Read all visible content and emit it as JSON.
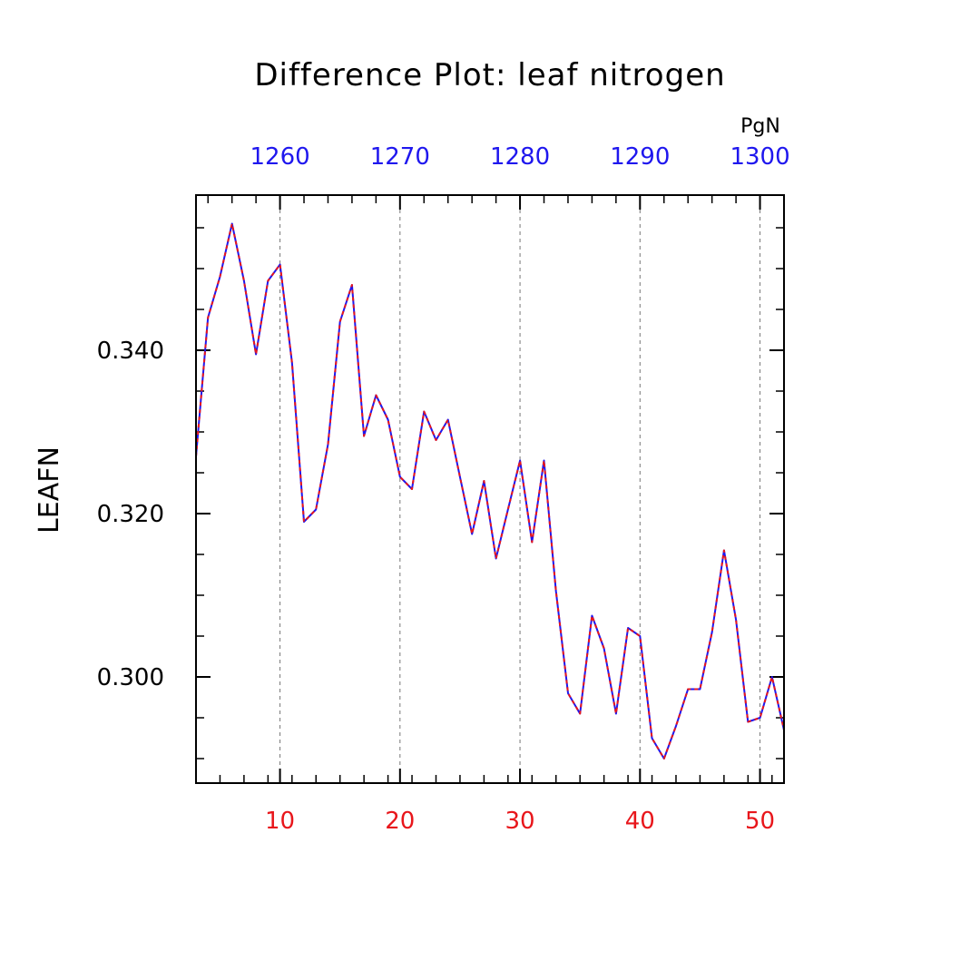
{
  "chart_data": {
    "type": "line",
    "title": "Difference Plot: leaf nitrogen",
    "ylabel": "LEAFN",
    "units": "PgN",
    "xlim": [
      3,
      52
    ],
    "ylim": [
      0.287,
      0.359
    ],
    "grid": "vertical dashed at major bottom ticks",
    "bottom_axis": {
      "color": "#e8161b",
      "ticks": [
        10,
        20,
        30,
        40,
        50
      ],
      "labels": [
        "10",
        "20",
        "30",
        "40",
        "50"
      ]
    },
    "top_axis": {
      "color": "#1f17ee",
      "ticks": [
        1260,
        1270,
        1280,
        1290,
        1300
      ],
      "labels": [
        "1260",
        "1270",
        "1280",
        "1290",
        "1300"
      ]
    },
    "y_ticks": [
      0.3,
      0.32,
      0.34
    ],
    "y_tick_labels": [
      "0.300",
      "0.320",
      "0.340"
    ],
    "series": [
      {
        "color": "#1f17ee",
        "overlay_color": "#e8161b",
        "x": [
          3,
          4,
          5,
          6,
          7,
          8,
          9,
          10,
          11,
          12,
          13,
          14,
          15,
          16,
          17,
          18,
          19,
          20,
          21,
          22,
          23,
          24,
          25,
          26,
          27,
          28,
          29,
          30,
          31,
          32,
          33,
          34,
          35,
          36,
          37,
          38,
          39,
          40,
          41,
          42,
          43,
          44,
          45,
          46,
          47,
          48,
          49,
          50,
          51,
          52
        ],
        "values": [
          0.327,
          0.344,
          0.349,
          0.3555,
          0.3485,
          0.3395,
          0.3485,
          0.3505,
          0.3385,
          0.319,
          0.3205,
          0.3285,
          0.3435,
          0.348,
          0.3295,
          0.3345,
          0.3315,
          0.3245,
          0.323,
          0.3325,
          0.329,
          0.3315,
          0.3245,
          0.3175,
          0.324,
          0.3145,
          0.3205,
          0.3265,
          0.3165,
          0.3265,
          0.3105,
          0.298,
          0.2955,
          0.3075,
          0.3035,
          0.2955,
          0.306,
          0.305,
          0.2925,
          0.29,
          0.294,
          0.2985,
          0.2985,
          0.3055,
          0.3155,
          0.307,
          0.2945,
          0.295,
          0.3,
          0.2935
        ]
      }
    ]
  }
}
